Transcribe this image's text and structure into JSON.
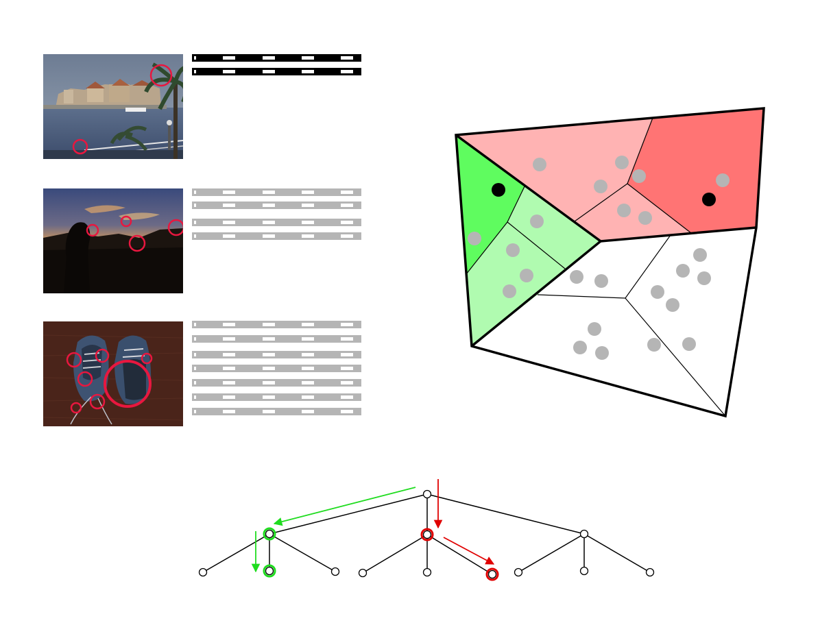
{
  "images": [
    {
      "name": "harbor-town-photo",
      "descriptor_count": 2,
      "descriptor_color": "#000000",
      "keypoint_color": "#e8173f"
    },
    {
      "name": "sunset-silhouette-photo",
      "descriptor_count": 4,
      "descriptor_color": "#b5b5b5",
      "keypoint_color": "#e8173f"
    },
    {
      "name": "shoes-on-wood-photo",
      "descriptor_count": 7,
      "descriptor_color": "#b5b5b5",
      "keypoint_color": "#e8173f"
    }
  ],
  "partition": {
    "colors": {
      "green_dark": "#5ffc5f",
      "green_light": "#b0fbb0",
      "red_dark": "#ff7474",
      "red_light": "#ffb3b3",
      "white": "#ffffff",
      "point_gray": "#b5b5b5",
      "point_black": "#000000"
    },
    "query_points": 2,
    "database_points": 27
  },
  "tree": {
    "levels": 3,
    "branching": 3,
    "colors": {
      "green_path": "#1fdc1f",
      "red_path": "#e00000",
      "edge": "#000000"
    }
  }
}
